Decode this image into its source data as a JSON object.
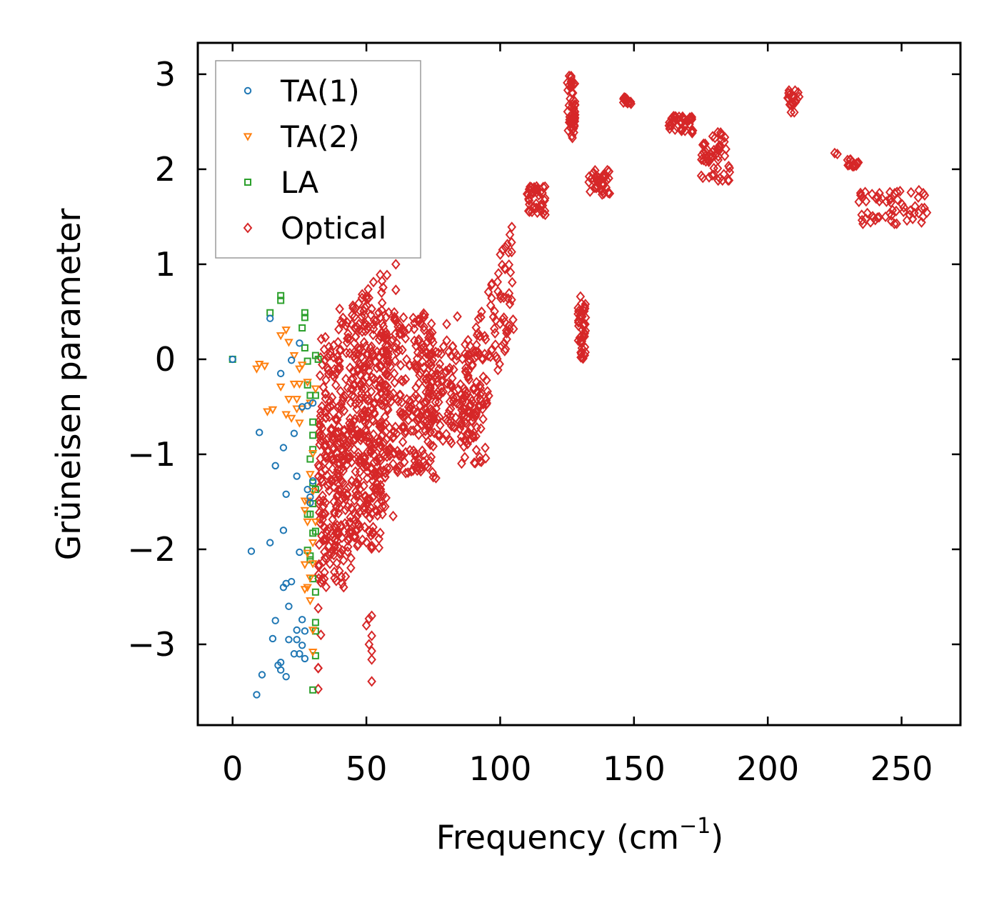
{
  "chart_data": {
    "type": "scatter",
    "title": "",
    "xlabel": "Frequency (cm",
    "xlabel_sup": "−1",
    "xlabel_close": ")",
    "ylabel": "Grüneisen parameter",
    "xlim": [
      -13,
      272
    ],
    "ylim": [
      -3.85,
      3.33
    ],
    "xticks": [
      0,
      50,
      100,
      150,
      200,
      250
    ],
    "xtick_labels": [
      "0",
      "50",
      "100",
      "150",
      "200",
      "250"
    ],
    "yticks": [
      -3,
      -2,
      -1,
      0,
      1,
      2,
      3
    ],
    "ytick_labels": [
      "−3",
      "−2",
      "−1",
      "0",
      "1",
      "2",
      "3"
    ],
    "grid": false,
    "legend_position": "top-left",
    "series": [
      {
        "name": "TA(1)",
        "marker": "circle",
        "color": "#1f77b4",
        "points": [
          [
            0,
            0
          ],
          [
            9,
            -3.53
          ],
          [
            11,
            -3.32
          ],
          [
            14,
            -1.93
          ],
          [
            15,
            -2.94
          ],
          [
            16,
            -2.75
          ],
          [
            16,
            -1.12
          ],
          [
            17,
            -3.22
          ],
          [
            10,
            -0.77
          ],
          [
            7,
            -2.02
          ],
          [
            18,
            -3.27
          ],
          [
            18,
            -3.19
          ],
          [
            19,
            -2.4
          ],
          [
            19,
            -1.8
          ],
          [
            19,
            -0.93
          ],
          [
            20,
            -3.34
          ],
          [
            20,
            -2.36
          ],
          [
            20,
            -1.42
          ],
          [
            21,
            -2.95
          ],
          [
            21,
            -2.6
          ],
          [
            22,
            -2.34
          ],
          [
            22,
            -0.01
          ],
          [
            23,
            -3.1
          ],
          [
            23,
            -0.78
          ],
          [
            24,
            -2.95
          ],
          [
            24,
            -1.23
          ],
          [
            24,
            -2.85
          ],
          [
            25,
            -3.1
          ],
          [
            25,
            -2.03
          ],
          [
            26,
            -3.01
          ],
          [
            26,
            -2.74
          ],
          [
            26,
            -0.5
          ],
          [
            27,
            -3.15
          ],
          [
            27,
            -2.86
          ],
          [
            28,
            -1.37
          ],
          [
            28,
            -0.49
          ],
          [
            29,
            -1.51
          ],
          [
            29,
            -1.45
          ],
          [
            30,
            -1.28
          ],
          [
            30,
            -0.46
          ],
          [
            25,
            0.17
          ],
          [
            14,
            0.43
          ],
          [
            18,
            -0.15
          ]
        ]
      },
      {
        "name": "TA(2)",
        "marker": "triangle-down",
        "color": "#ff7f0e",
        "points": [
          [
            9,
            -0.1
          ],
          [
            10,
            -0.05
          ],
          [
            12,
            -0.07
          ],
          [
            13,
            -0.55
          ],
          [
            15,
            -0.53
          ],
          [
            18,
            0.25
          ],
          [
            18,
            -0.29
          ],
          [
            20,
            0.31
          ],
          [
            20,
            -0.58
          ],
          [
            21,
            -0.42
          ],
          [
            21,
            0.18
          ],
          [
            22,
            -0.62
          ],
          [
            23,
            -0.26
          ],
          [
            24,
            -0.42
          ],
          [
            24,
            -0.52
          ],
          [
            25,
            -0.67
          ],
          [
            25,
            -0.1
          ],
          [
            26,
            -0.52
          ],
          [
            27,
            -1.49
          ],
          [
            27,
            -2.42
          ],
          [
            27,
            -2.16
          ],
          [
            27,
            -1.59
          ],
          [
            28,
            -2.4
          ],
          [
            28,
            -2.04
          ],
          [
            28,
            -1.71
          ],
          [
            28,
            -1.49
          ],
          [
            29,
            -2.54
          ],
          [
            29,
            -2.3
          ],
          [
            29,
            -1.21
          ],
          [
            29,
            -0.46
          ],
          [
            30,
            -3.08
          ],
          [
            30,
            -2.85
          ],
          [
            30,
            -2.15
          ],
          [
            30,
            -1.93
          ],
          [
            30,
            -1.39
          ],
          [
            30,
            -0.99
          ],
          [
            31,
            -1.71
          ],
          [
            31,
            -0.31
          ],
          [
            23,
            0.04
          ],
          [
            26,
            -0.06
          ],
          [
            25,
            -0.26
          ],
          [
            28,
            -0.24
          ]
        ]
      },
      {
        "name": "LA",
        "marker": "square",
        "color": "#2ca02c",
        "points": [
          [
            0,
            0
          ],
          [
            14,
            0.49
          ],
          [
            18,
            0.62
          ],
          [
            18,
            0.67
          ],
          [
            26,
            0.33
          ],
          [
            27,
            0.49
          ],
          [
            27,
            0.44
          ],
          [
            27,
            0.12
          ],
          [
            28,
            -0.27
          ],
          [
            28,
            -1.63
          ],
          [
            28,
            -2.01
          ],
          [
            29,
            -1.63
          ],
          [
            29,
            -2.11
          ],
          [
            29,
            -1.05
          ],
          [
            29,
            -2.07
          ],
          [
            30,
            -3.48
          ],
          [
            30,
            -0.8
          ],
          [
            30,
            -0.95
          ],
          [
            30,
            -1.3
          ],
          [
            30,
            -1.83
          ],
          [
            30,
            -2.31
          ],
          [
            30,
            -0.66
          ],
          [
            31,
            -2.45
          ],
          [
            31,
            -2.86
          ],
          [
            31,
            -2.77
          ],
          [
            31,
            -3.12
          ],
          [
            31,
            -1.37
          ],
          [
            31,
            -1.81
          ],
          [
            31,
            -0.38
          ],
          [
            32,
            0
          ],
          [
            31,
            0.04
          ],
          [
            29,
            -0.38
          ],
          [
            28,
            -0.02
          ],
          [
            30,
            -1.52
          ]
        ]
      },
      {
        "name": "Optical",
        "marker": "diamond",
        "color": "#d62728",
        "clusters": [
          {
            "x": [
              32,
              58
            ],
            "y": [
              -2.3,
              0.2
            ],
            "n": 380,
            "trend": 0.03
          },
          {
            "x": [
              32,
              45
            ],
            "y": [
              -2.4,
              -0.3
            ],
            "n": 130,
            "trend": 0.0
          },
          {
            "x": [
              45,
              56
            ],
            "y": [
              -2.0,
              0.2
            ],
            "n": 120,
            "trend": 0.0
          },
          {
            "x": [
              55,
              75
            ],
            "y": [
              -1.2,
              0.5
            ],
            "n": 240,
            "trend": 0.0
          },
          {
            "x": [
              72,
              90
            ],
            "y": [
              -0.9,
              0.2
            ],
            "n": 140,
            "trend": 0.0
          },
          {
            "x": [
              85,
              95
            ],
            "y": [
              -1.1,
              -0.3
            ],
            "n": 60,
            "trend": 0.0
          },
          {
            "x": [
              90,
              105
            ],
            "y": [
              -0.9,
              0.3
            ],
            "n": 90,
            "trend": 0.08
          },
          {
            "x": [
              110,
              117
            ],
            "y": [
              1.52,
              1.82
            ],
            "n": 40,
            "trend": 0.0
          },
          {
            "x": [
              125,
              128
            ],
            "y": [
              2.35,
              3.0
            ],
            "n": 50,
            "trend": 0.0
          },
          {
            "x": [
              129,
              132
            ],
            "y": [
              -0.05,
              0.6
            ],
            "n": 45,
            "trend": 0.0
          },
          {
            "x": [
              133,
              141
            ],
            "y": [
              1.73,
              2.0
            ],
            "n": 40,
            "trend": 0.0
          },
          {
            "x": [
              146,
              149
            ],
            "y": [
              2.68,
              2.76
            ],
            "n": 15,
            "trend": 0.0
          },
          {
            "x": [
              163,
              172
            ],
            "y": [
              2.38,
              2.56
            ],
            "n": 40,
            "trend": 0.0
          },
          {
            "x": [
              175,
              186
            ],
            "y": [
              1.88,
              2.4
            ],
            "n": 55,
            "trend": 0.0
          },
          {
            "x": [
              207,
              212
            ],
            "y": [
              2.58,
              2.83
            ],
            "n": 20,
            "trend": 0.0
          },
          {
            "x": [
              229,
              234
            ],
            "y": [
              2.03,
              2.12
            ],
            "n": 15,
            "trend": 0.0
          },
          {
            "x": [
              234,
              260
            ],
            "y": [
              1.42,
              1.78
            ],
            "n": 60,
            "trend": 0.0
          }
        ],
        "points": [
          [
            61,
            1.0
          ],
          [
            61,
            0.73
          ],
          [
            50,
            0.66
          ],
          [
            40,
            0.53
          ],
          [
            45,
            0.54
          ],
          [
            52,
            0.53
          ],
          [
            43,
            -0.3
          ],
          [
            36,
            0.13
          ],
          [
            47,
            0.05
          ],
          [
            84,
            0.45
          ],
          [
            88,
            0.2
          ],
          [
            91,
            0.08
          ],
          [
            60,
            -1.65
          ],
          [
            56,
            -1.63
          ],
          [
            57,
            -1.55
          ],
          [
            52,
            -2.7
          ],
          [
            51,
            -2.73
          ],
          [
            52,
            -2.91
          ],
          [
            51,
            -3.0
          ],
          [
            52,
            -3.07
          ],
          [
            52,
            -3.16
          ],
          [
            52,
            -3.39
          ],
          [
            50,
            -2.8
          ],
          [
            32,
            -3.47
          ],
          [
            32,
            -3.25
          ],
          [
            32,
            -3.25
          ],
          [
            33,
            -2.9
          ],
          [
            32,
            -2.62
          ],
          [
            226,
            2.16
          ],
          [
            225,
            2.17
          ],
          [
            208,
            2.78
          ],
          [
            241,
            1.49
          ],
          [
            244,
            1.5
          ],
          [
            127,
            2.33
          ],
          [
            130,
            0.66
          ],
          [
            130,
            0.45
          ],
          [
            76,
            -1.25
          ],
          [
            75,
            -1.24
          ],
          [
            105,
            0.32
          ],
          [
            103,
            0.3
          ],
          [
            80,
            0.37
          ]
        ]
      }
    ]
  }
}
